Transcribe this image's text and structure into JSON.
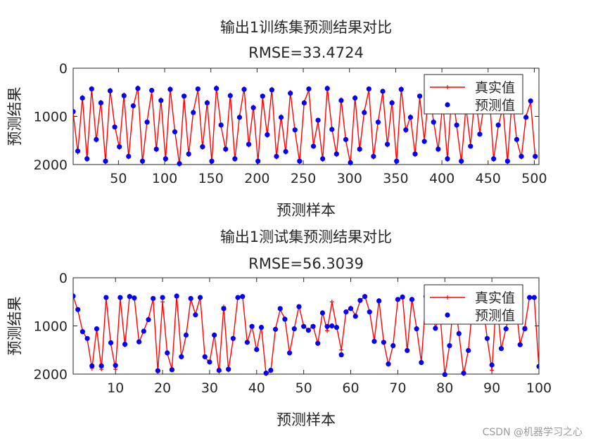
{
  "watermark": "CSDN @机器学习之心",
  "colors": {
    "true_line": "#ff0000",
    "pred_marker": "#0000ff",
    "axis": "#262626"
  },
  "chart_data": [
    {
      "type": "line",
      "title": "输出1训练集预测结果对比",
      "subtitle": "RMSE=33.4724",
      "xlabel": "预测样本",
      "ylabel": "预测结果",
      "xlim": [
        1,
        505
      ],
      "ylim": [
        0,
        2000
      ],
      "y_reversed": true,
      "xticks": [
        50,
        100,
        150,
        200,
        250,
        300,
        350,
        400,
        450,
        500
      ],
      "yticks": [
        0,
        1000,
        2000
      ],
      "legend": {
        "position": "top-right",
        "entries": [
          "真实值",
          "预测值"
        ]
      },
      "grid": false,
      "x": [
        1,
        6,
        11,
        16,
        21,
        26,
        31,
        36,
        41,
        46,
        51,
        56,
        61,
        66,
        71,
        76,
        81,
        86,
        91,
        96,
        101,
        106,
        111,
        116,
        121,
        126,
        131,
        136,
        141,
        146,
        151,
        156,
        161,
        166,
        171,
        176,
        181,
        186,
        191,
        196,
        201,
        206,
        211,
        216,
        221,
        226,
        231,
        236,
        241,
        246,
        251,
        256,
        261,
        266,
        271,
        276,
        281,
        286,
        291,
        296,
        301,
        306,
        311,
        316,
        321,
        326,
        331,
        336,
        341,
        346,
        351,
        356,
        361,
        366,
        371,
        376,
        381,
        386,
        391,
        396,
        401,
        406,
        411,
        416,
        421,
        426,
        431,
        436,
        441,
        446,
        451,
        456,
        461,
        466,
        471,
        476,
        481,
        486,
        491,
        496,
        501
      ],
      "series": [
        {
          "name": "真实值",
          "values": [
            920,
            1750,
            600,
            1900,
            420,
            1500,
            700,
            1950,
            450,
            1200,
            1650,
            550,
            1850,
            800,
            400,
            1950,
            1100,
            480,
            1700,
            650,
            1900,
            420,
            1300,
            2000,
            600,
            1800,
            900,
            450,
            1650,
            700,
            1950,
            400,
            1200,
            1700,
            550,
            1900,
            1000,
            420,
            1600,
            800,
            1950,
            600,
            1400,
            430,
            1850,
            1000,
            1750,
            500,
            1300,
            1950,
            700,
            450,
            1600,
            1100,
            1900,
            400,
            1250,
            1800,
            650,
            1500,
            1980,
            600,
            1700,
            900,
            450,
            1850,
            1100,
            500,
            1600,
            700,
            1950,
            420,
            1300,
            1000,
            1800,
            600,
            1500,
            450,
            1100,
            1700,
            700,
            1900,
            400,
            1200,
            1950,
            800,
            1600,
            500,
            1350,
            700,
            450,
            1900,
            1200,
            800,
            1950,
            600,
            1500,
            1850,
            1000,
            700,
            1850
          ]
        },
        {
          "name": "预测值",
          "values": [
            900,
            1720,
            620,
            1880,
            430,
            1480,
            720,
            1930,
            470,
            1220,
            1630,
            570,
            1830,
            780,
            420,
            1930,
            1120,
            460,
            1680,
            670,
            1880,
            440,
            1320,
            1980,
            580,
            1780,
            920,
            430,
            1630,
            720,
            1930,
            420,
            1180,
            1680,
            570,
            1880,
            1020,
            440,
            1580,
            820,
            1930,
            580,
            1380,
            450,
            1830,
            1020,
            1730,
            520,
            1280,
            1930,
            720,
            430,
            1620,
            1080,
            1880,
            420,
            1270,
            1780,
            670,
            1480,
            1960,
            620,
            1680,
            920,
            430,
            1830,
            1120,
            480,
            1580,
            720,
            1930,
            440,
            1280,
            1020,
            1780,
            580,
            1520,
            430,
            1120,
            1680,
            720,
            1880,
            420,
            1180,
            1930,
            780,
            1620,
            480,
            1370,
            680,
            430,
            1880,
            1180,
            820,
            1930,
            580,
            1480,
            1830,
            1020,
            680,
            1830
          ]
        }
      ]
    },
    {
      "type": "line",
      "title": "输出1测试集预测结果对比",
      "subtitle": "RMSE=56.3039",
      "xlabel": "预测样本",
      "ylabel": "预测结果",
      "xlim": [
        1,
        100
      ],
      "ylim": [
        0,
        2000
      ],
      "y_reversed": true,
      "xticks": [
        10,
        20,
        30,
        40,
        50,
        60,
        70,
        80,
        90,
        100
      ],
      "yticks": [
        0,
        1000,
        2000
      ],
      "legend": {
        "position": "top-right",
        "entries": [
          "真实值",
          "预测值"
        ]
      },
      "grid": false,
      "x": [
        1,
        2,
        3,
        4,
        5,
        6,
        7,
        8,
        9,
        10,
        11,
        12,
        13,
        14,
        15,
        16,
        17,
        18,
        19,
        20,
        21,
        22,
        23,
        24,
        25,
        26,
        27,
        28,
        29,
        30,
        31,
        32,
        33,
        34,
        35,
        36,
        37,
        38,
        39,
        40,
        41,
        42,
        43,
        44,
        45,
        46,
        47,
        48,
        49,
        50,
        51,
        52,
        53,
        54,
        55,
        56,
        57,
        58,
        59,
        60,
        61,
        62,
        63,
        64,
        65,
        66,
        67,
        68,
        69,
        70,
        71,
        72,
        73,
        74,
        75,
        76,
        77,
        78,
        79,
        80,
        81,
        82,
        83,
        84,
        85,
        86,
        87,
        88,
        89,
        90,
        91,
        92,
        93,
        94,
        95,
        96,
        97,
        98,
        99,
        100
      ],
      "series": [
        {
          "name": "真实值",
          "values": [
            380,
            680,
            1100,
            1280,
            1880,
            1050,
            1900,
            420,
            1370,
            1900,
            430,
            1400,
            380,
            420,
            1340,
            1100,
            850,
            440,
            1950,
            500,
            1570,
            1900,
            370,
            1650,
            1200,
            440,
            760,
            400,
            1650,
            1760,
            1180,
            1950,
            600,
            1920,
            1280,
            400,
            380,
            1350,
            1000,
            1500,
            1020,
            2000,
            1940,
            1060,
            660,
            850,
            1570,
            1050,
            590,
            1000,
            1080,
            1000,
            1370,
            720,
            1100,
            500,
            1020,
            1500,
            700,
            620,
            780,
            480,
            380,
            700,
            1310,
            470,
            1330,
            1800,
            1400,
            460,
            390,
            1520,
            440,
            1050,
            1750,
            380,
            530,
            1040,
            760,
            2020,
            1400,
            380,
            1150,
            2000,
            1500,
            500,
            620,
            500,
            1250,
            1920,
            390,
            1480,
            1050,
            640,
            470,
            1380,
            1020,
            400,
            410,
            1870
          ]
        },
        {
          "name": "预测值",
          "values": [
            380,
            660,
            1120,
            1260,
            1830,
            1060,
            1830,
            410,
            1350,
            1820,
            410,
            1380,
            390,
            420,
            1330,
            1110,
            870,
            430,
            1930,
            410,
            1560,
            1910,
            380,
            1640,
            1190,
            430,
            770,
            410,
            1640,
            1750,
            1190,
            1920,
            640,
            1900,
            1260,
            410,
            390,
            1340,
            1010,
            1490,
            1030,
            1980,
            1920,
            1070,
            640,
            860,
            1560,
            1060,
            600,
            1010,
            1090,
            1010,
            1360,
            730,
            1010,
            1000,
            1030,
            1600,
            710,
            640,
            800,
            470,
            390,
            710,
            1320,
            480,
            1340,
            1790,
            1410,
            450,
            400,
            1510,
            450,
            1060,
            1760,
            390,
            540,
            1050,
            770,
            2010,
            1410,
            390,
            1160,
            1980,
            1510,
            510,
            630,
            510,
            1260,
            1810,
            400,
            1470,
            1060,
            650,
            480,
            1390,
            1060,
            410,
            410,
            1840
          ]
        }
      ]
    }
  ]
}
